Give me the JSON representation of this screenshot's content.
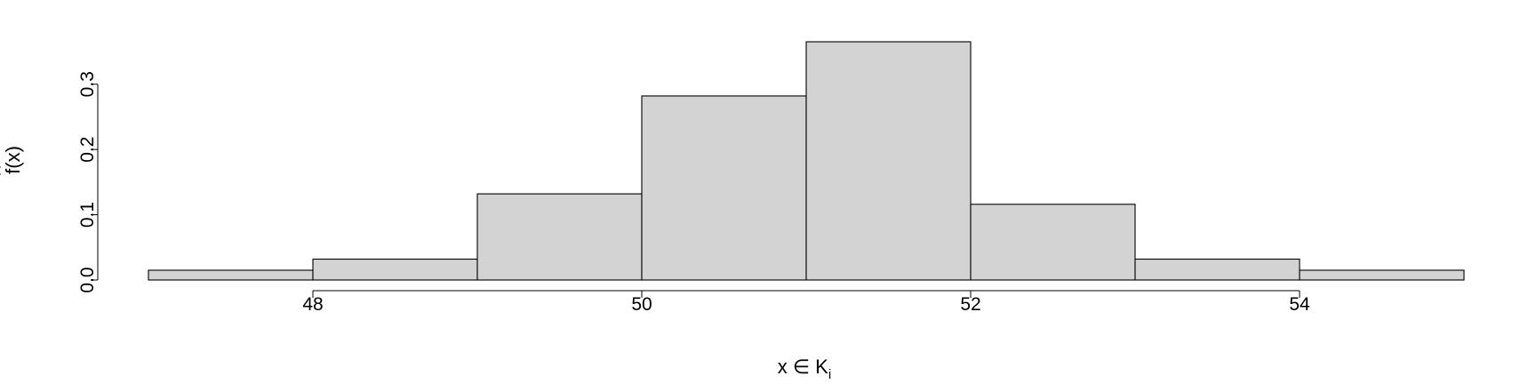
{
  "chart_data": {
    "type": "histogram",
    "title": "",
    "xlabel": "x ∈ K",
    "xlabel_subscript": "i",
    "ylabel": "f(x)",
    "ylabel_accent": "^",
    "bins": [
      {
        "x0": 47,
        "x1": 48,
        "y": 0.015
      },
      {
        "x0": 48,
        "x1": 49,
        "y": 0.032
      },
      {
        "x0": 49,
        "x1": 50,
        "y": 0.132
      },
      {
        "x0": 50,
        "x1": 51,
        "y": 0.282
      },
      {
        "x0": 51,
        "x1": 52,
        "y": 0.365
      },
      {
        "x0": 52,
        "x1": 53,
        "y": 0.116
      },
      {
        "x0": 53,
        "x1": 54,
        "y": 0.032
      },
      {
        "x0": 54,
        "x1": 55,
        "y": 0.015
      }
    ],
    "xlim": [
      47,
      55
    ],
    "ylim": [
      0,
      0.365
    ],
    "x_ticks": [
      48,
      50,
      52,
      54
    ],
    "x_tick_labels": [
      "48",
      "50",
      "52",
      "54"
    ],
    "y_ticks": [
      0.0,
      0.1,
      0.2,
      0.3
    ],
    "y_tick_labels": [
      "0.0",
      "0.1",
      "0.2",
      "0.3"
    ],
    "grid": false,
    "legend": "none",
    "bar_fill": "#d3d3d3",
    "bar_stroke": "#000000"
  }
}
